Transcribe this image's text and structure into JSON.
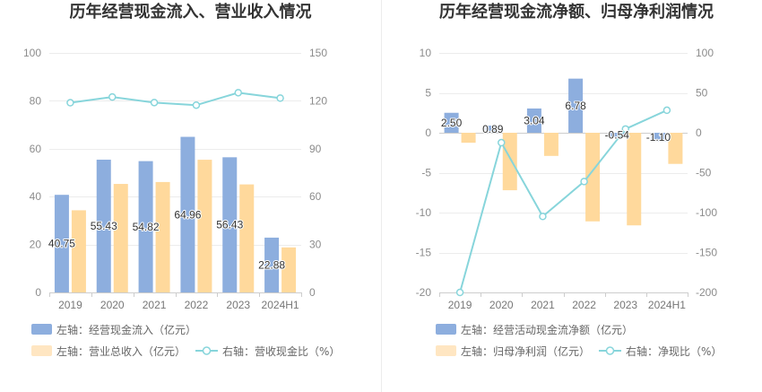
{
  "chart_data": [
    {
      "type": "bar",
      "title": "历年经营现金流入、营业收入情况",
      "categories": [
        "2019",
        "2020",
        "2021",
        "2022",
        "2023",
        "2024H1"
      ],
      "y_left": {
        "range": [
          0,
          100
        ],
        "ticks": [
          0,
          20,
          40,
          60,
          80,
          100
        ]
      },
      "y_right": {
        "range": [
          0,
          150
        ],
        "ticks": [
          0,
          30,
          60,
          90,
          120,
          150
        ]
      },
      "legend_position": "bottom-left",
      "series": [
        {
          "name": "左轴：经营现金流入（亿元）",
          "type": "bar",
          "axis": "left",
          "color": "#8DAEDE",
          "legend_color": "#8DAEDE",
          "values": [
            40.75,
            55.43,
            54.82,
            64.96,
            56.43,
            22.88
          ],
          "data_labels": [
            "40.75",
            "55.43",
            "54.82",
            "64.96",
            "56.43",
            "22.88"
          ]
        },
        {
          "name": "左轴：营业总收入（亿元）",
          "type": "bar",
          "axis": "left",
          "color": "#FFD99C",
          "legend_color": "#FFE6C2",
          "values": [
            34.3,
            45.3,
            46.1,
            55.4,
            45.1,
            18.8
          ]
        },
        {
          "name": "右轴：营收现金比（%）",
          "type": "line",
          "axis": "right",
          "color": "#87D5DB",
          "values": [
            118.8,
            122.4,
            118.9,
            117.3,
            125.1,
            121.7
          ]
        }
      ]
    },
    {
      "type": "bar",
      "title": "历年经营现金流净额、归母净利润情况",
      "categories": [
        "2019",
        "2020",
        "2021",
        "2022",
        "2023",
        "2024H1"
      ],
      "y_left": {
        "range": [
          -20,
          10
        ],
        "ticks": [
          -20,
          -15,
          -10,
          -5,
          0,
          5,
          10
        ]
      },
      "y_right": {
        "range": [
          -200,
          100
        ],
        "ticks": [
          -200,
          -150,
          -100,
          -50,
          0,
          50,
          100
        ]
      },
      "legend_position": "bottom-left",
      "series": [
        {
          "name": "左轴：经营活动现金流净额（亿元）",
          "type": "bar",
          "axis": "left",
          "color": "#8DAEDE",
          "legend_color": "#8DAEDE",
          "values": [
            2.5,
            0.89,
            3.04,
            6.78,
            -0.54,
            -1.1
          ],
          "data_labels": [
            "2.50",
            "0.89",
            "3.04",
            "6.78",
            "-0.54",
            "-1.10"
          ]
        },
        {
          "name": "左轴：归母净利润（亿元）",
          "type": "bar",
          "axis": "left",
          "color": "#FFD99C",
          "legend_color": "#FFE6C2",
          "values": [
            -1.25,
            -7.2,
            -2.9,
            -11.1,
            -11.6,
            -3.9
          ]
        },
        {
          "name": "右轴：净现比（%）",
          "type": "line",
          "axis": "right",
          "color": "#87D5DB",
          "values": [
            -200.0,
            -12.4,
            -104.8,
            -61.1,
            4.7,
            28.2
          ]
        }
      ]
    }
  ]
}
